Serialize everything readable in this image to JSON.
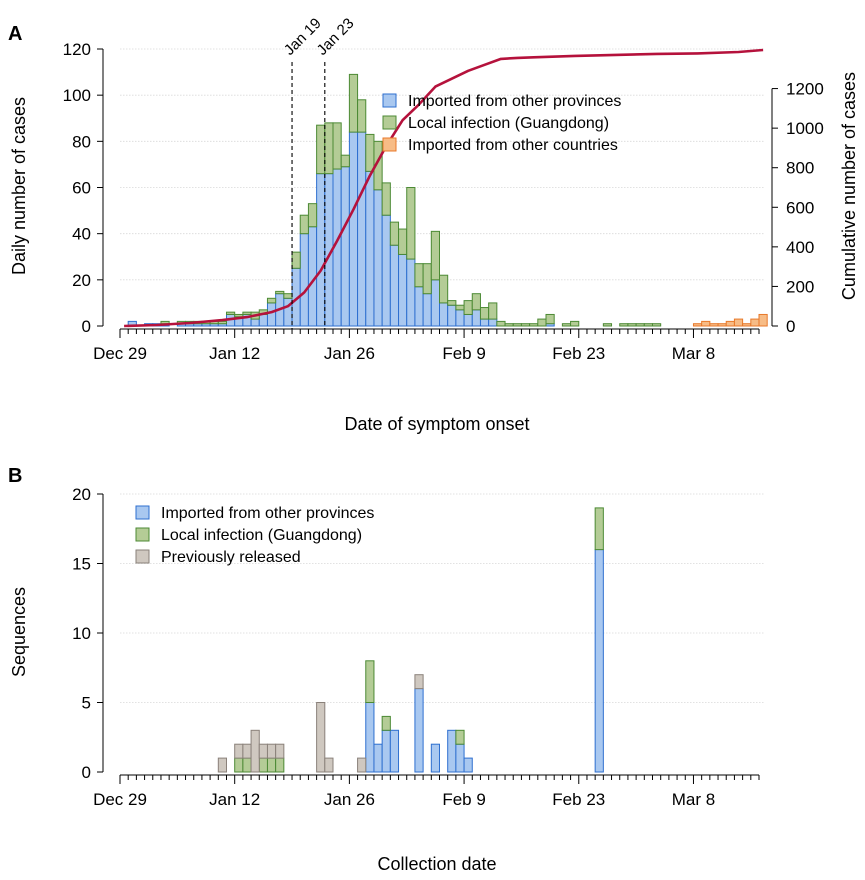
{
  "chart_data": [
    {
      "type": "bar",
      "stacked": true,
      "panel_label": "A",
      "xlabel": "Date of symptom onset",
      "ylabel": "Daily number of cases",
      "y2label": "Cumulative number of cases",
      "ylim": [
        0,
        120
      ],
      "y2lim": [
        0,
        1400
      ],
      "yticks": [
        0,
        20,
        40,
        60,
        80,
        100,
        120
      ],
      "y2ticks": [
        0,
        200,
        400,
        600,
        800,
        1000,
        1200
      ],
      "x_start": "2019-12-29",
      "x_end": "2020-03-16",
      "xtick_labels": [
        "Dec 29",
        "Jan 12",
        "Jan 26",
        "Feb 9",
        "Feb 23",
        "Mar 8"
      ],
      "legend_position": "top-right",
      "series": [
        {
          "name": "Imported from other provinces",
          "color": "#a9c8f0",
          "edge": "#2e6fcf",
          "values": [
            0,
            2,
            0,
            1,
            1,
            1,
            0,
            1,
            1,
            1,
            1,
            1,
            1,
            5,
            4,
            5,
            3,
            5,
            10,
            14,
            12,
            25,
            40,
            43,
            66,
            66,
            68,
            69,
            84,
            84,
            67,
            59,
            48,
            35,
            31,
            29,
            17,
            14,
            20,
            10,
            9,
            7,
            5,
            7,
            3,
            3,
            0,
            0,
            0,
            0,
            0,
            0,
            1,
            0,
            0,
            0,
            0,
            0,
            0,
            0,
            0,
            0,
            0,
            0,
            0,
            0,
            0,
            0,
            0,
            0,
            0,
            0,
            0,
            0,
            0,
            0,
            0,
            0
          ]
        },
        {
          "name": "Local infection (Guangdong)",
          "color": "#b4cc96",
          "edge": "#4c8a34",
          "values": [
            0,
            0,
            0,
            0,
            0,
            1,
            0,
            1,
            1,
            1,
            1,
            1,
            1,
            1,
            1,
            1,
            3,
            2,
            2,
            1,
            2,
            7,
            8,
            10,
            21,
            22,
            20,
            5,
            25,
            14,
            16,
            21,
            14,
            10,
            11,
            31,
            10,
            13,
            21,
            12,
            2,
            2,
            6,
            7,
            5,
            7,
            2,
            1,
            1,
            1,
            1,
            3,
            4,
            0,
            1,
            2,
            0,
            0,
            0,
            1,
            0,
            1,
            1,
            1,
            1,
            1,
            0,
            0,
            0,
            0,
            0,
            0,
            0,
            0,
            0,
            0,
            0,
            0
          ]
        },
        {
          "name": "Imported from other countries",
          "color": "#f7bc86",
          "edge": "#e8792a",
          "values": [
            0,
            0,
            0,
            0,
            0,
            0,
            0,
            0,
            0,
            0,
            0,
            0,
            0,
            0,
            0,
            0,
            0,
            0,
            0,
            0,
            0,
            0,
            0,
            0,
            0,
            0,
            0,
            0,
            0,
            0,
            0,
            0,
            0,
            0,
            0,
            0,
            0,
            0,
            0,
            0,
            0,
            0,
            0,
            0,
            0,
            0,
            0,
            0,
            0,
            0,
            0,
            0,
            0,
            0,
            0,
            0,
            0,
            0,
            0,
            0,
            0,
            0,
            0,
            0,
            0,
            0,
            0,
            0,
            0,
            0,
            1,
            2,
            1,
            1,
            2,
            3,
            1,
            3,
            5,
            5,
            3
          ]
        }
      ],
      "cumulative_line": {
        "color": "#b5123c",
        "x_days": [
          0,
          4,
          8,
          12,
          15,
          18,
          20,
          22,
          24,
          26,
          28,
          30,
          32,
          34,
          36,
          38,
          40,
          42,
          44,
          46,
          48,
          50,
          55,
          60,
          65,
          70,
          75,
          78
        ],
        "values": [
          0,
          5,
          15,
          30,
          45,
          70,
          100,
          170,
          280,
          430,
          590,
          760,
          910,
          1040,
          1120,
          1210,
          1250,
          1290,
          1320,
          1350,
          1355,
          1358,
          1365,
          1370,
          1375,
          1378,
          1385,
          1395
        ]
      },
      "annotations": [
        {
          "label": "Jan 19",
          "date": "2020-01-19"
        },
        {
          "label": "Jan 23",
          "date": "2020-01-23"
        }
      ]
    },
    {
      "type": "bar",
      "stacked": true,
      "panel_label": "B",
      "xlabel": "Collection date",
      "ylabel": "Sequences",
      "ylim": [
        0,
        20
      ],
      "yticks": [
        0,
        5,
        10,
        15,
        20
      ],
      "x_start": "2019-12-29",
      "x_end": "2020-03-16",
      "xtick_labels": [
        "Dec 29",
        "Jan 12",
        "Jan 26",
        "Feb 9",
        "Feb 23",
        "Mar 8"
      ],
      "legend_position": "top-left",
      "series": [
        {
          "name": "Imported from other provinces",
          "color": "#a9c8f0",
          "edge": "#2e6fcf",
          "values": [
            0,
            0,
            0,
            0,
            0,
            0,
            0,
            0,
            0,
            0,
            0,
            0,
            0,
            0,
            0,
            0,
            0,
            0,
            0,
            0,
            0,
            0,
            0,
            0,
            0,
            0,
            0,
            0,
            0,
            0,
            5,
            2,
            3,
            3,
            0,
            0,
            6,
            0,
            2,
            0,
            3,
            2,
            1,
            0,
            0,
            0,
            0,
            0,
            0,
            0,
            0,
            0,
            0,
            0,
            0,
            0,
            0,
            0,
            16,
            0,
            0,
            0,
            0,
            0,
            0,
            0,
            0,
            0,
            0,
            0,
            0,
            0,
            0,
            0,
            0,
            0,
            0,
            0
          ]
        },
        {
          "name": "Local infection (Guangdong)",
          "color": "#b4cc96",
          "edge": "#4c8a34",
          "values": [
            0,
            0,
            0,
            0,
            0,
            0,
            0,
            0,
            0,
            0,
            0,
            0,
            0,
            0,
            1,
            1,
            0,
            1,
            1,
            1,
            0,
            0,
            0,
            0,
            0,
            0,
            0,
            0,
            0,
            0,
            3,
            0,
            1,
            0,
            0,
            0,
            0,
            0,
            0,
            0,
            0,
            1,
            0,
            0,
            0,
            0,
            0,
            0,
            0,
            0,
            0,
            0,
            0,
            0,
            0,
            0,
            0,
            0,
            3,
            0,
            0,
            0,
            0,
            0,
            0,
            0,
            0,
            0,
            0,
            0,
            0,
            0,
            0,
            0,
            0,
            0,
            0,
            0
          ]
        },
        {
          "name": "Previously released",
          "color": "#cfc8c0",
          "edge": "#8a817a",
          "values": [
            0,
            0,
            0,
            0,
            0,
            0,
            0,
            0,
            0,
            0,
            0,
            0,
            1,
            0,
            1,
            1,
            3,
            1,
            1,
            1,
            0,
            0,
            0,
            0,
            5,
            1,
            0,
            0,
            0,
            1,
            0,
            0,
            0,
            0,
            0,
            0,
            1,
            0,
            0,
            0,
            0,
            0,
            0,
            0,
            0,
            0,
            0,
            0,
            0,
            0,
            0,
            0,
            0,
            0,
            0,
            0,
            0,
            0,
            0,
            0,
            0,
            0,
            0,
            0,
            0,
            0,
            0,
            0,
            0,
            0,
            0,
            0,
            0,
            0,
            0,
            0,
            0,
            0
          ]
        }
      ]
    }
  ]
}
